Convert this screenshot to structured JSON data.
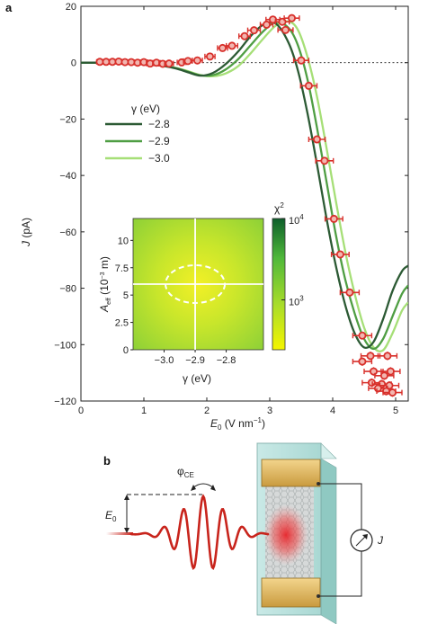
{
  "panel_a_label": "a",
  "panel_b_label": "b",
  "colors": {
    "data": "#d8302b",
    "data_fill": "#f2b6b0",
    "line_dark": "#2c5a34",
    "line_mid": "#4f9e43",
    "line_light": "#a6df77",
    "colormap_low": "#f5f500",
    "colormap_high": "#0d5e2a",
    "pulse": "#c8241c"
  },
  "chart_data": [
    {
      "type": "scatter",
      "xlabel_main": "E",
      "xlabel_sub": "0",
      "xlabel_unit": " (V nm",
      "xlabel_exp": "−1",
      "xlabel_close": ")",
      "ylabel_main": "J",
      "ylabel_unit": " (pA)",
      "xlim": [
        0,
        5.2
      ],
      "ylim": [
        -120,
        20
      ],
      "xticks": [
        0,
        1,
        2,
        3,
        4,
        5
      ],
      "xtick_labels": [
        "0",
        "1",
        "2",
        "3",
        "4",
        "5"
      ],
      "yticks": [
        20,
        0,
        -20,
        -40,
        -60,
        -80,
        -100,
        -120
      ],
      "ytick_labels": [
        "20",
        "0",
        "−20",
        "−40",
        "−60",
        "−80",
        "−100",
        "−120"
      ],
      "zero_line": "dotted",
      "legend": {
        "title": "γ (eV)",
        "placement": "upper-left",
        "entries": [
          "−2.8",
          "−2.9",
          "−3.0"
        ]
      },
      "points": [
        {
          "x": 0.3,
          "y": 0.3,
          "xerr": 0.05,
          "yerr": 0.6
        },
        {
          "x": 0.4,
          "y": 0.3,
          "xerr": 0.05,
          "yerr": 0.6
        },
        {
          "x": 0.5,
          "y": 0.3,
          "xerr": 0.05,
          "yerr": 0.6
        },
        {
          "x": 0.6,
          "y": 0.4,
          "xerr": 0.05,
          "yerr": 0.6
        },
        {
          "x": 0.7,
          "y": 0.2,
          "xerr": 0.05,
          "yerr": 0.6
        },
        {
          "x": 0.8,
          "y": 0.2,
          "xerr": 0.05,
          "yerr": 0.6
        },
        {
          "x": 0.9,
          "y": 0.0,
          "xerr": 0.05,
          "yerr": 0.6
        },
        {
          "x": 1.0,
          "y": 0.2,
          "xerr": 0.06,
          "yerr": 0.6
        },
        {
          "x": 1.1,
          "y": -0.3,
          "xerr": 0.06,
          "yerr": 0.6
        },
        {
          "x": 1.2,
          "y": 0.0,
          "xerr": 0.06,
          "yerr": 0.6
        },
        {
          "x": 1.3,
          "y": -0.4,
          "xerr": 0.06,
          "yerr": 0.6
        },
        {
          "x": 1.4,
          "y": -0.3,
          "xerr": 0.07,
          "yerr": 0.6
        },
        {
          "x": 1.6,
          "y": 0.1,
          "xerr": 0.07,
          "yerr": 0.8
        },
        {
          "x": 1.7,
          "y": 0.6,
          "xerr": 0.07,
          "yerr": 0.8
        },
        {
          "x": 1.85,
          "y": 0.8,
          "xerr": 0.08,
          "yerr": 0.8
        },
        {
          "x": 2.05,
          "y": 2.2,
          "xerr": 0.08,
          "yerr": 0.8
        },
        {
          "x": 2.25,
          "y": 5.2,
          "xerr": 0.08,
          "yerr": 0.8
        },
        {
          "x": 2.4,
          "y": 6.0,
          "xerr": 0.09,
          "yerr": 0.8
        },
        {
          "x": 2.6,
          "y": 9.4,
          "xerr": 0.09,
          "yerr": 0.8
        },
        {
          "x": 2.75,
          "y": 11.5,
          "xerr": 0.1,
          "yerr": 0.8
        },
        {
          "x": 2.95,
          "y": 13.5,
          "xerr": 0.1,
          "yerr": 0.8
        },
        {
          "x": 3.05,
          "y": 15.3,
          "xerr": 0.11,
          "yerr": 0.8
        },
        {
          "x": 3.2,
          "y": 14.5,
          "xerr": 0.11,
          "yerr": 0.8
        },
        {
          "x": 3.35,
          "y": 15.8,
          "xerr": 0.12,
          "yerr": 0.8
        },
        {
          "x": 3.25,
          "y": 11.6,
          "xerr": 0.12,
          "yerr": 0.8
        },
        {
          "x": 3.5,
          "y": 0.8,
          "xerr": 0.12,
          "yerr": 1.0
        },
        {
          "x": 3.62,
          "y": -8.2,
          "xerr": 0.13,
          "yerr": 1.0
        },
        {
          "x": 3.75,
          "y": -27.2,
          "xerr": 0.13,
          "yerr": 1.0
        },
        {
          "x": 3.87,
          "y": -34.8,
          "xerr": 0.14,
          "yerr": 1.2
        },
        {
          "x": 4.02,
          "y": -55.4,
          "xerr": 0.14,
          "yerr": 1.2
        },
        {
          "x": 4.12,
          "y": -68.0,
          "xerr": 0.14,
          "yerr": 1.2
        },
        {
          "x": 4.27,
          "y": -81.5,
          "xerr": 0.15,
          "yerr": 1.2
        },
        {
          "x": 4.47,
          "y": -96.8,
          "xerr": 0.15,
          "yerr": 1.2
        },
        {
          "x": 4.6,
          "y": -104.0,
          "xerr": 0.15,
          "yerr": 1.5
        },
        {
          "x": 4.87,
          "y": -104.0,
          "xerr": 0.15,
          "yerr": 1.5
        },
        {
          "x": 4.47,
          "y": -106.0,
          "xerr": 0.15,
          "yerr": 1.5
        },
        {
          "x": 4.65,
          "y": -109.5,
          "xerr": 0.15,
          "yerr": 1.5
        },
        {
          "x": 4.92,
          "y": -109.5,
          "xerr": 0.15,
          "yerr": 1.5
        },
        {
          "x": 4.82,
          "y": -111.0,
          "xerr": 0.15,
          "yerr": 1.5
        },
        {
          "x": 4.62,
          "y": -113.5,
          "xerr": 0.15,
          "yerr": 1.5
        },
        {
          "x": 4.78,
          "y": -114.0,
          "xerr": 0.15,
          "yerr": 1.5
        },
        {
          "x": 4.9,
          "y": -114.5,
          "xerr": 0.15,
          "yerr": 1.5
        },
        {
          "x": 4.72,
          "y": -115.5,
          "xerr": 0.15,
          "yerr": 1.5
        },
        {
          "x": 4.85,
          "y": -116.5,
          "xerr": 0.15,
          "yerr": 1.5
        },
        {
          "x": 4.95,
          "y": -117.0,
          "xerr": 0.15,
          "yerr": 1.5
        }
      ],
      "series": [
        {
          "name": "−2.8",
          "x": [
            0,
            0.4,
            0.8,
            1.2,
            1.5,
            1.7,
            1.9,
            2.1,
            2.3,
            2.5,
            2.7,
            2.9,
            3.1,
            3.3,
            3.45,
            3.6,
            3.75,
            3.9,
            4.05,
            4.2,
            4.35,
            4.5,
            4.65,
            4.8,
            4.95,
            5.1,
            5.2
          ],
          "y": [
            0,
            0,
            -0.2,
            -0.8,
            -2.0,
            -3.4,
            -4.6,
            -3.6,
            -0.5,
            4.0,
            9.5,
            13.5,
            13.8,
            7.0,
            -3.0,
            -18.0,
            -36.0,
            -55.0,
            -72.0,
            -86.0,
            -96.0,
            -101.0,
            -99.0,
            -91.0,
            -81.0,
            -74.0,
            -72.0
          ]
        },
        {
          "name": "−2.9",
          "x": [
            0,
            0.4,
            0.8,
            1.2,
            1.5,
            1.7,
            1.9,
            2.1,
            2.3,
            2.5,
            2.7,
            2.9,
            3.1,
            3.3,
            3.45,
            3.6,
            3.75,
            3.9,
            4.05,
            4.2,
            4.35,
            4.5,
            4.65,
            4.8,
            4.95,
            5.1,
            5.2
          ],
          "y": [
            0,
            0,
            -0.2,
            -0.8,
            -1.9,
            -3.2,
            -4.5,
            -4.4,
            -2.4,
            1.3,
            6.3,
            11.2,
            14.4,
            12.3,
            6.0,
            -6.0,
            -23.0,
            -42.0,
            -61.0,
            -77.0,
            -89.0,
            -98.0,
            -101.5,
            -98.0,
            -90.0,
            -82.0,
            -79.0
          ]
        },
        {
          "name": "−3.0",
          "x": [
            0,
            0.4,
            0.8,
            1.2,
            1.5,
            1.7,
            1.9,
            2.1,
            2.3,
            2.5,
            2.7,
            2.9,
            3.1,
            3.3,
            3.45,
            3.6,
            3.75,
            3.9,
            4.05,
            4.2,
            4.35,
            4.5,
            4.65,
            4.8,
            4.95,
            5.1,
            5.2
          ],
          "y": [
            0,
            0,
            -0.2,
            -0.7,
            -1.8,
            -3.0,
            -4.4,
            -4.8,
            -3.8,
            -1.2,
            3.4,
            8.6,
            13.2,
            14.6,
            11.5,
            2.0,
            -12.0,
            -30.0,
            -49.0,
            -67.0,
            -82.0,
            -94.0,
            -101.0,
            -102.0,
            -96.0,
            -88.0,
            -85.0
          ]
        }
      ]
    },
    {
      "type": "heatmap",
      "xlabel": "γ (eV)",
      "ylabel_main": "A",
      "ylabel_sub": "eff",
      "ylabel_unit": " (10",
      "ylabel_exp": "−3",
      "ylabel_close": " m)",
      "xlim": [
        -3.1,
        -2.68
      ],
      "ylim": [
        0,
        12
      ],
      "xticks": [
        -3.0,
        -2.9,
        -2.8
      ],
      "xtick_labels": [
        "−3.0",
        "−2.9",
        "−2.8"
      ],
      "yticks": [
        0,
        2.5,
        5,
        7.5,
        10
      ],
      "ytick_labels": [
        "0",
        "2.5",
        "5",
        "7.5",
        "10"
      ],
      "minimum": {
        "gamma": -2.9,
        "A_eff": 6
      },
      "colorbar": {
        "label": "χ",
        "label_exp": "2",
        "scale": "log",
        "ticks": [
          {
            "base": "10",
            "exp": "4",
            "log_pos": 1.0
          },
          {
            "base": "10",
            "exp": "3",
            "log_pos": 0.38
          }
        ]
      }
    }
  ],
  "diagram": {
    "field_label": "E",
    "field_sub": "0",
    "phase_label": "φ",
    "phase_sub": "CE",
    "current_label": "J"
  }
}
